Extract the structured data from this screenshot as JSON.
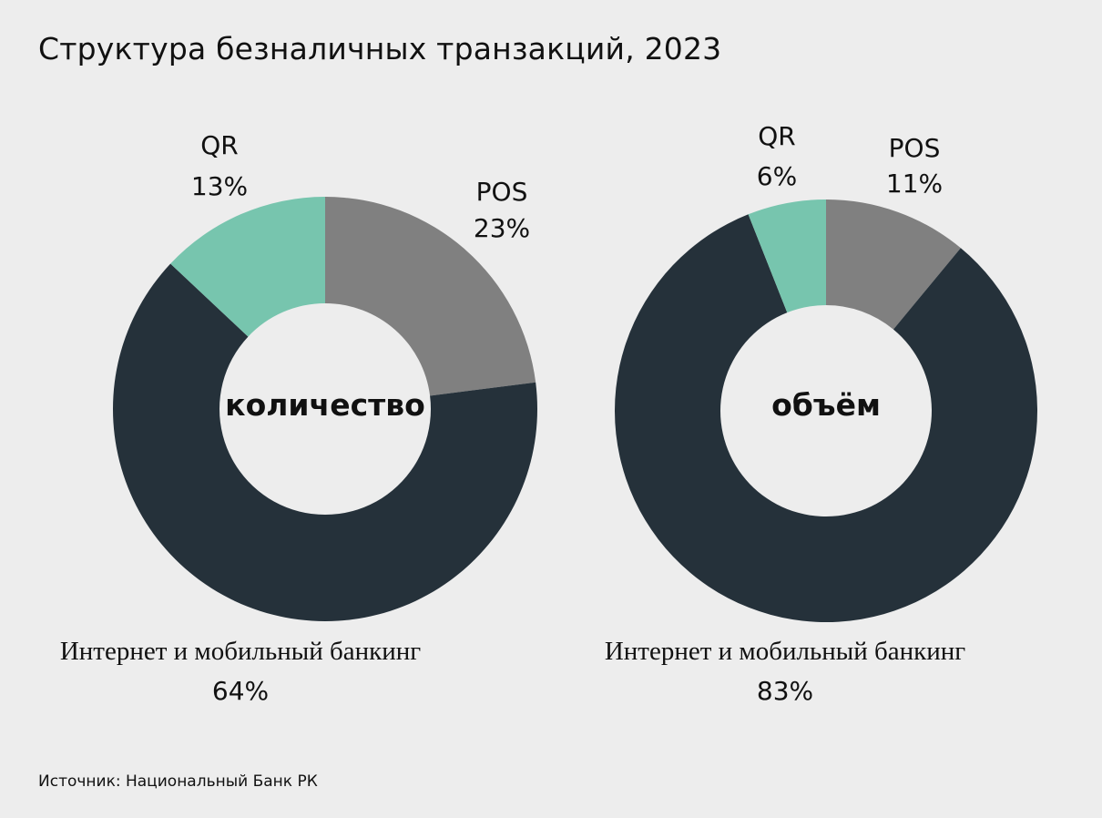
{
  "title": "Структура безналичных транзакций, 2023",
  "source": "Источник: Национальный Банк РК",
  "colors": {
    "pos": "#808080",
    "internet": "#25313a",
    "qr": "#77c5ae",
    "background": "#ededed"
  },
  "chart_data": [
    {
      "type": "pie",
      "center_label": "количество",
      "slices": [
        {
          "name": "POS",
          "value": 23,
          "label": "23%",
          "color": "#808080"
        },
        {
          "name": "Интернет и мобильный банкинг",
          "value": 64,
          "label": "64%",
          "color": "#25313a"
        },
        {
          "name": "QR",
          "value": 13,
          "label": "13%",
          "color": "#77c5ae"
        }
      ]
    },
    {
      "type": "pie",
      "center_label": "объём",
      "slices": [
        {
          "name": "POS",
          "value": 11,
          "label": "11%",
          "color": "#808080"
        },
        {
          "name": "Интернет и мобильный банкинг",
          "value": 83,
          "label": "83%",
          "color": "#25313a"
        },
        {
          "name": "QR",
          "value": 6,
          "label": "6%",
          "color": "#77c5ae"
        }
      ]
    }
  ]
}
